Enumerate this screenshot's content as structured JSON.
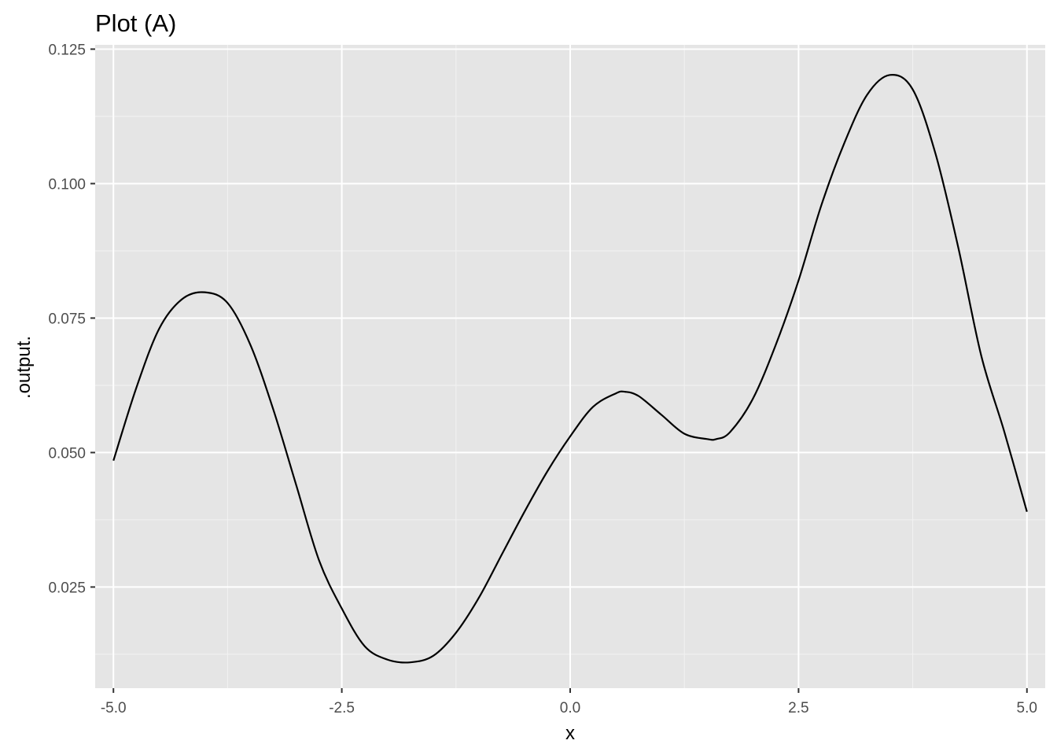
{
  "chart_data": {
    "type": "line",
    "title": "Plot (A)",
    "xlabel": "x",
    "ylabel": ".output.",
    "xlim": [
      -5.2,
      5.2
    ],
    "ylim": [
      0.0062,
      0.1258
    ],
    "x_ticks": [
      -5.0,
      -2.5,
      0.0,
      2.5,
      5.0
    ],
    "x_tick_labels": [
      "-5.0",
      "-2.5",
      "0.0",
      "2.5",
      "5.0"
    ],
    "y_ticks": [
      0.025,
      0.05,
      0.075,
      0.1,
      0.125
    ],
    "y_tick_labels": [
      "0.025",
      "0.050",
      "0.075",
      "0.100",
      "0.125"
    ],
    "grid": true,
    "series": [
      {
        "color": "#000000",
        "x": [
          -5.0,
          -4.75,
          -4.5,
          -4.25,
          -4.0,
          -3.75,
          -3.5,
          -3.25,
          -3.0,
          -2.75,
          -2.5,
          -2.25,
          -2.0,
          -1.75,
          -1.5,
          -1.25,
          -1.0,
          -0.75,
          -0.5,
          -0.25,
          0.0,
          0.25,
          0.5,
          0.6,
          0.75,
          1.0,
          1.25,
          1.5,
          1.6,
          1.75,
          2.0,
          2.25,
          2.5,
          2.75,
          3.0,
          3.25,
          3.5,
          3.75,
          4.0,
          4.25,
          4.5,
          4.75,
          5.0
        ],
        "y": [
          0.0485,
          0.062,
          0.073,
          0.0785,
          0.0798,
          0.0778,
          0.07,
          0.058,
          0.044,
          0.03,
          0.021,
          0.014,
          0.0115,
          0.011,
          0.0122,
          0.0165,
          0.023,
          0.031,
          0.039,
          0.0465,
          0.053,
          0.0585,
          0.061,
          0.0613,
          0.0605,
          0.057,
          0.0535,
          0.0525,
          0.0525,
          0.0538,
          0.06,
          0.07,
          0.082,
          0.096,
          0.1075,
          0.1165,
          0.1202,
          0.1175,
          0.1055,
          0.088,
          0.068,
          0.054,
          0.039
        ]
      }
    ]
  }
}
